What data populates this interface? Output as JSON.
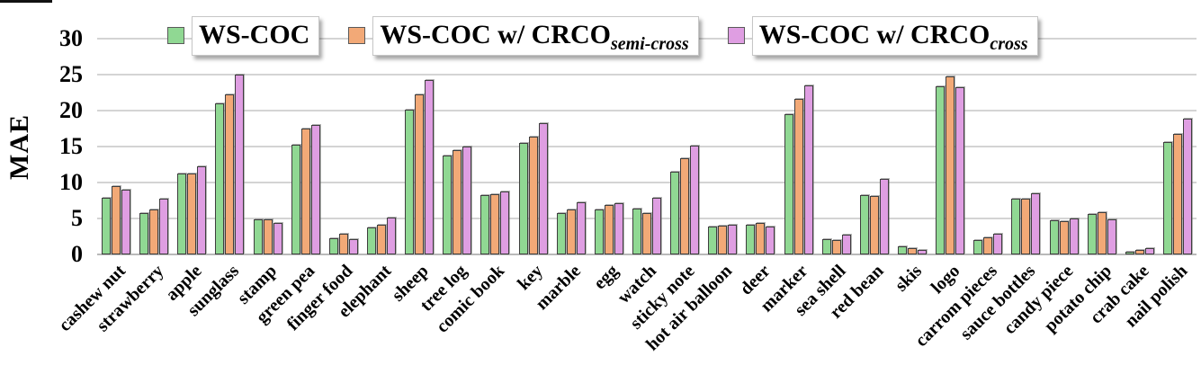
{
  "chart_data": {
    "type": "bar",
    "title": "",
    "xlabel": "",
    "ylabel": "MAE",
    "ylim": [
      0,
      30
    ],
    "yticks": [
      0,
      5,
      10,
      15,
      20,
      25,
      30
    ],
    "grid": true,
    "legend_position": "top",
    "categories": [
      "cashew nut",
      "strawberry",
      "apple",
      "sunglass",
      "stamp",
      "green pea",
      "finger food",
      "elephant",
      "sheep",
      "tree log",
      "comic book",
      "key",
      "marble",
      "egg",
      "watch",
      "sticky note",
      "hot air balloon",
      "deer",
      "marker",
      "sea shell",
      "red bean",
      "skis",
      "logo",
      "carrom pieces",
      "sauce bottles",
      "candy piece",
      "potato chip",
      "crab cake",
      "nail polish"
    ],
    "series": [
      {
        "name": "WS-COC",
        "label_base": "WS-COC",
        "label_sub": "",
        "color": "#90d893",
        "values": [
          7.9,
          5.8,
          11.2,
          21.0,
          4.9,
          15.3,
          2.3,
          3.8,
          20.1,
          13.8,
          8.2,
          15.5,
          5.8,
          6.3,
          6.4,
          11.5,
          3.9,
          4.1,
          19.5,
          2.1,
          8.2,
          1.1,
          23.4,
          2.0,
          7.8,
          4.8,
          5.6,
          0.4,
          15.6
        ]
      },
      {
        "name": "WS-COC w/ CRCO_semi-cross",
        "label_base": "WS-COC w/ CRCO",
        "label_sub": "semi-cross",
        "color": "#f2a977",
        "values": [
          9.5,
          6.3,
          11.3,
          22.2,
          4.9,
          17.5,
          2.9,
          4.1,
          22.3,
          14.5,
          8.4,
          16.4,
          6.3,
          6.9,
          5.8,
          13.4,
          4.0,
          4.4,
          21.6,
          2.0,
          8.1,
          0.9,
          24.8,
          2.4,
          7.8,
          4.6,
          5.9,
          0.6,
          16.7
        ]
      },
      {
        "name": "WS-COC w/ CRCO_cross",
        "label_base": "WS-COC w/ CRCO",
        "label_sub": "cross",
        "color": "#df9ee2",
        "values": [
          9.0,
          7.8,
          12.2,
          25.0,
          4.4,
          18.0,
          2.1,
          5.1,
          24.2,
          15.0,
          8.8,
          18.3,
          7.2,
          7.1,
          7.9,
          15.1,
          4.1,
          3.9,
          23.5,
          2.7,
          10.5,
          0.6,
          23.3,
          2.9,
          8.5,
          5.0,
          4.9,
          0.9,
          18.9
        ]
      }
    ]
  }
}
